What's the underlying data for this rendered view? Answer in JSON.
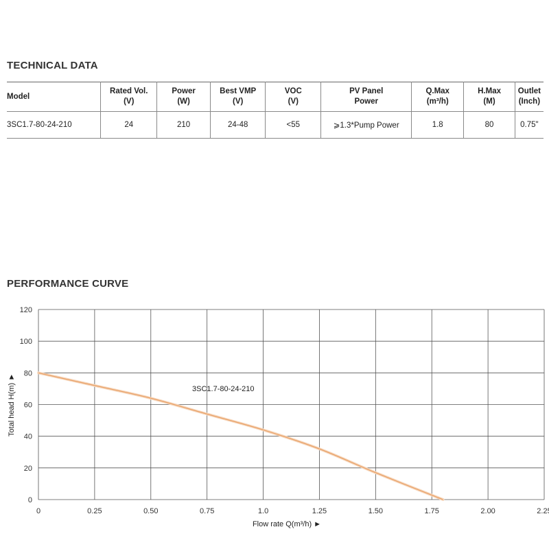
{
  "technical": {
    "heading": "TECHNICAL DATA",
    "headers": [
      {
        "line1": "Model",
        "line2": ""
      },
      {
        "line1": "Rated Vol.",
        "line2": "(V)"
      },
      {
        "line1": "Power",
        "line2": "(W)"
      },
      {
        "line1": "Best VMP",
        "line2": "(V)"
      },
      {
        "line1": "VOC",
        "line2": "(V)"
      },
      {
        "line1": "PV Panel",
        "line2": "Power"
      },
      {
        "line1": "Q.Max",
        "line2": "(m³/h)"
      },
      {
        "line1": "H.Max",
        "line2": "(M)"
      },
      {
        "line1": "Outlet",
        "line2": "(Inch)"
      }
    ],
    "row": [
      "3SC1.7-80-24-210",
      "24",
      "210",
      "24-48",
      "<55",
      "⩾1.3*Pump Power",
      "1.8",
      "80",
      "0.75\""
    ]
  },
  "performance": {
    "heading": "PERFORMANCE CURVE"
  },
  "chart_data": {
    "type": "line",
    "title": "",
    "xlabel": "Flow rate Q(m³/h) ►",
    "ylabel": "Total head H(m) ►",
    "xlim": [
      0,
      2.25
    ],
    "ylim": [
      0,
      120
    ],
    "grid": true,
    "x_ticks": [
      "0",
      "0.25",
      "0.50",
      "0.75",
      "1.0",
      "1.25",
      "1.50",
      "1.75",
      "2.00",
      "2.25"
    ],
    "y_ticks": [
      "0",
      "20",
      "40",
      "60",
      "80",
      "100",
      "120"
    ],
    "series": [
      {
        "name": "3SC1.7-80-24-210",
        "color": "#e8a066",
        "x": [
          0,
          0.25,
          0.5,
          0.75,
          1.0,
          1.25,
          1.5,
          1.8
        ],
        "y": [
          80,
          72,
          64,
          54,
          44,
          32,
          17,
          0
        ]
      }
    ],
    "annotation": "3SC1.7-80-24-210"
  }
}
